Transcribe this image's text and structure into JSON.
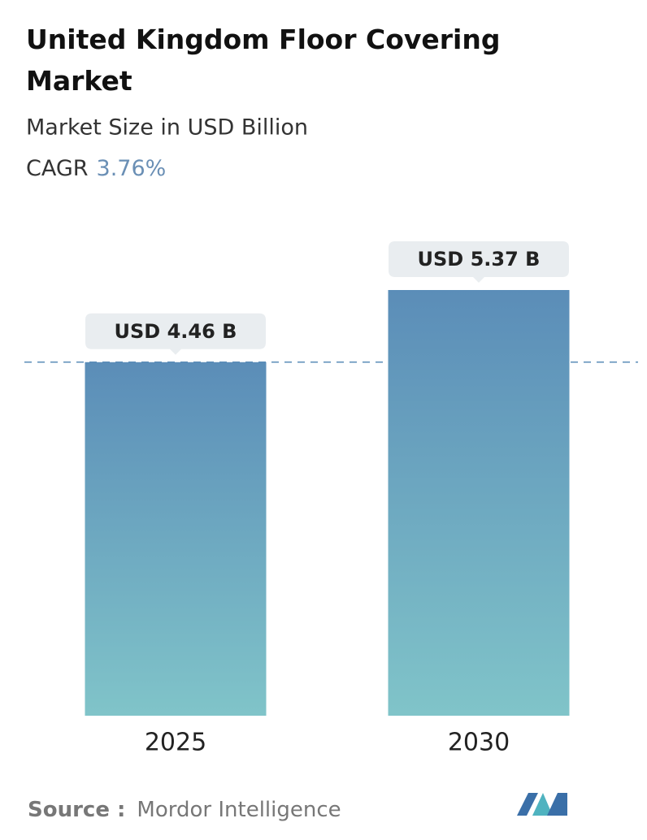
{
  "chart_data": {
    "type": "bar",
    "title": "United Kingdom Floor Covering Market",
    "subtitle": "Market Size in USD Billion",
    "cagr_label": "CAGR",
    "cagr": "3.76%",
    "categories": [
      "2025",
      "2030"
    ],
    "values": [
      4.46,
      5.37
    ],
    "value_labels": [
      "USD 4.46 B",
      "USD 5.37 B"
    ],
    "color_top": "#5b8db8",
    "color_bottom": "#80c4c9",
    "source_label": "Source :",
    "source": "Mordor Intelligence"
  }
}
